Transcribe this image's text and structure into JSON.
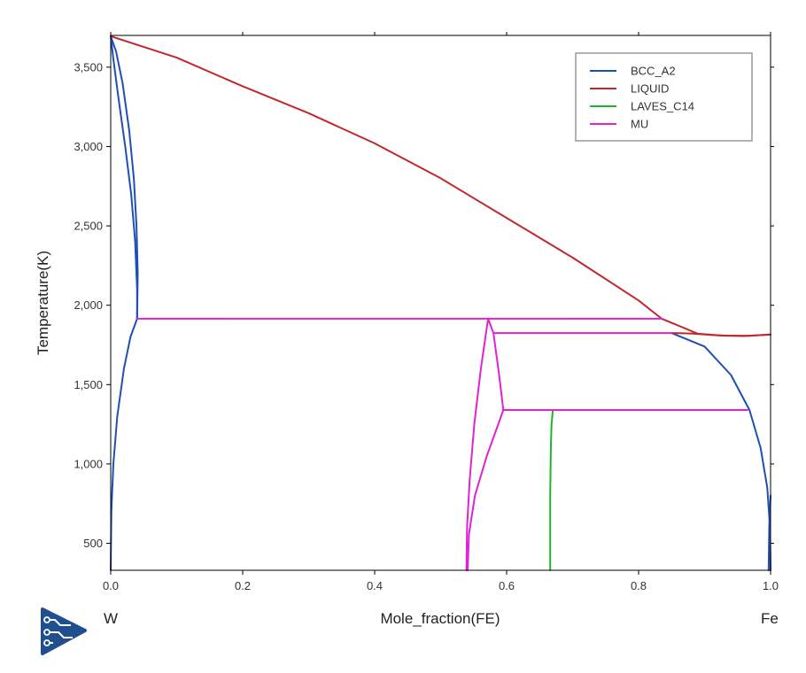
{
  "chart_data": {
    "type": "line",
    "xlabel": "Mole_fraction(FE)",
    "ylabel": "Temperature(K)",
    "xlim": [
      0,
      1
    ],
    "ylim": [
      330,
      3700
    ],
    "x_ticks": [
      {
        "value": 0,
        "label": "0.0"
      },
      {
        "value": 0.2,
        "label": "0.2"
      },
      {
        "value": 0.4,
        "label": "0.4"
      },
      {
        "value": 0.6,
        "label": "0.6"
      },
      {
        "value": 0.8,
        "label": "0.8"
      },
      {
        "value": 1.0,
        "label": "1.0"
      }
    ],
    "y_ticks": [
      {
        "value": 500,
        "label": "500"
      },
      {
        "value": 1000,
        "label": "1,000"
      },
      {
        "value": 1500,
        "label": "1,500"
      },
      {
        "value": 2000,
        "label": "2,000"
      },
      {
        "value": 2500,
        "label": "2,500"
      },
      {
        "value": 3000,
        "label": "3,000"
      },
      {
        "value": 3500,
        "label": "3,500"
      }
    ],
    "left_end_label": "W",
    "right_end_label": "Fe",
    "legend_position": "top-right",
    "series": [
      {
        "name": "BCC_A2",
        "color": "#1f4fb5",
        "segments": [
          [
            [
              0,
              3695
            ],
            [
              0.008,
              3600
            ],
            [
              0.018,
              3400
            ],
            [
              0.028,
              3100
            ],
            [
              0.035,
              2800
            ],
            [
              0.039,
              2500
            ],
            [
              0.041,
              2200
            ],
            [
              0.04,
              1915
            ]
          ],
          [
            [
              0,
              330
            ],
            [
              0.001,
              700
            ],
            [
              0.004,
              1000
            ],
            [
              0.01,
              1300
            ],
            [
              0.02,
              1600
            ],
            [
              0.03,
              1800
            ],
            [
              0.04,
              1915
            ]
          ],
          [
            [
              0,
              3695
            ],
            [
              0.004,
              3550
            ],
            [
              0.012,
              3300
            ],
            [
              0.022,
              3000
            ],
            [
              0.031,
              2700
            ],
            [
              0.037,
              2400
            ],
            [
              0.04,
              2100
            ],
            [
              0.04,
              1915
            ]
          ],
          [
            [
              0.85,
              1825
            ],
            [
              0.9,
              1740
            ],
            [
              0.94,
              1560
            ],
            [
              0.968,
              1340
            ],
            [
              0.985,
              1100
            ],
            [
              0.995,
              850
            ],
            [
              0.999,
              600
            ],
            [
              1.0,
              330
            ]
          ],
          [
            [
              0.997,
              330
            ],
            [
              0.998,
              600
            ],
            [
              1.0,
              800
            ]
          ]
        ]
      },
      {
        "name": "LIQUID",
        "color": "#c0282d",
        "segments": [
          [
            [
              0,
              3695
            ],
            [
              0.1,
              3560
            ],
            [
              0.2,
              3380
            ],
            [
              0.3,
              3210
            ],
            [
              0.4,
              3020
            ],
            [
              0.5,
              2800
            ],
            [
              0.6,
              2550
            ],
            [
              0.7,
              2300
            ],
            [
              0.8,
              2030
            ],
            [
              0.835,
              1915
            ]
          ],
          [
            [
              0.835,
              1915
            ],
            [
              0.89,
              1820
            ],
            [
              0.93,
              1808
            ],
            [
              0.97,
              1808
            ],
            [
              1.0,
              1815
            ]
          ],
          [
            [
              0.85,
              1825
            ],
            [
              0.88,
              1822
            ],
            [
              0.92,
              1810
            ],
            [
              0.96,
              1806
            ],
            [
              1.0,
              1815
            ]
          ]
        ]
      },
      {
        "name": "LAVES_C14",
        "color": "#1fb52a",
        "segments": [
          [
            [
              0.666,
              330
            ],
            [
              0.666,
              800
            ],
            [
              0.667,
              1100
            ],
            [
              0.668,
              1250
            ],
            [
              0.67,
              1340
            ]
          ]
        ]
      },
      {
        "name": "MU",
        "color": "#e022d6",
        "segments": [
          [
            [
              0.04,
              1915
            ],
            [
              0.835,
              1915
            ]
          ],
          [
            [
              0.58,
              1825
            ],
            [
              0.85,
              1825
            ]
          ],
          [
            [
              0.595,
              1340
            ],
            [
              0.965,
              1340
            ]
          ],
          [
            [
              0.572,
              1915
            ],
            [
              0.58,
              1825
            ]
          ],
          [
            [
              0.58,
              1825
            ],
            [
              0.588,
              1580
            ],
            [
              0.595,
              1340
            ]
          ],
          [
            [
              0.572,
              1915
            ],
            [
              0.561,
              1600
            ],
            [
              0.551,
              1250
            ],
            [
              0.544,
              900
            ],
            [
              0.54,
              600
            ],
            [
              0.539,
              330
            ]
          ],
          [
            [
              0.595,
              1340
            ],
            [
              0.57,
              1050
            ],
            [
              0.552,
              800
            ],
            [
              0.543,
              560
            ],
            [
              0.541,
              330
            ]
          ]
        ]
      }
    ]
  },
  "logo": {
    "name": "app-logo-icon"
  }
}
